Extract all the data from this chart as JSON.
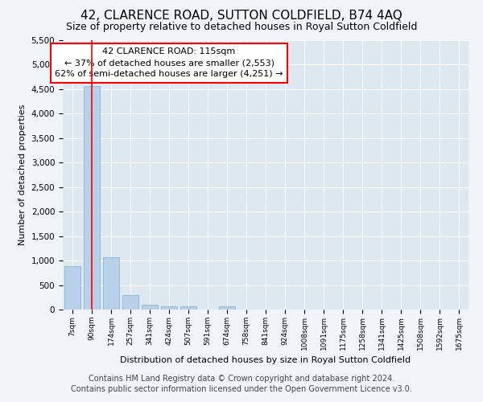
{
  "title": "42, CLARENCE ROAD, SUTTON COLDFIELD, B74 4AQ",
  "subtitle": "Size of property relative to detached houses in Royal Sutton Coldfield",
  "xlabel": "Distribution of detached houses by size in Royal Sutton Coldfield",
  "ylabel": "Number of detached properties",
  "footnote1": "Contains HM Land Registry data © Crown copyright and database right 2024.",
  "footnote2": "Contains public sector information licensed under the Open Government Licence v3.0.",
  "categories": [
    "7sqm",
    "90sqm",
    "174sqm",
    "257sqm",
    "341sqm",
    "424sqm",
    "507sqm",
    "591sqm",
    "674sqm",
    "758sqm",
    "841sqm",
    "924sqm",
    "1008sqm",
    "1091sqm",
    "1175sqm",
    "1258sqm",
    "1341sqm",
    "1425sqm",
    "1508sqm",
    "1592sqm",
    "1675sqm"
  ],
  "values": [
    880,
    4560,
    1060,
    295,
    95,
    70,
    70,
    0,
    70,
    0,
    0,
    0,
    0,
    0,
    0,
    0,
    0,
    0,
    0,
    0,
    0
  ],
  "bar_color": "#b8d0e8",
  "bar_edge_color": "#7aafd4",
  "red_line_x": 1.0,
  "annotation_line1": "42 CLARENCE ROAD: 115sqm",
  "annotation_line2": "← 37% of detached houses are smaller (2,553)",
  "annotation_line3": "62% of semi-detached houses are larger (4,251) →",
  "ylim": [
    0,
    5500
  ],
  "yticks": [
    0,
    500,
    1000,
    1500,
    2000,
    2500,
    3000,
    3500,
    4000,
    4500,
    5000,
    5500
  ],
  "bg_color": "#f0f4f8",
  "plot_bg_color": "#dde8f0",
  "title_fontsize": 11,
  "subtitle_fontsize": 9,
  "annotation_fontsize": 8,
  "footnote_fontsize": 7
}
